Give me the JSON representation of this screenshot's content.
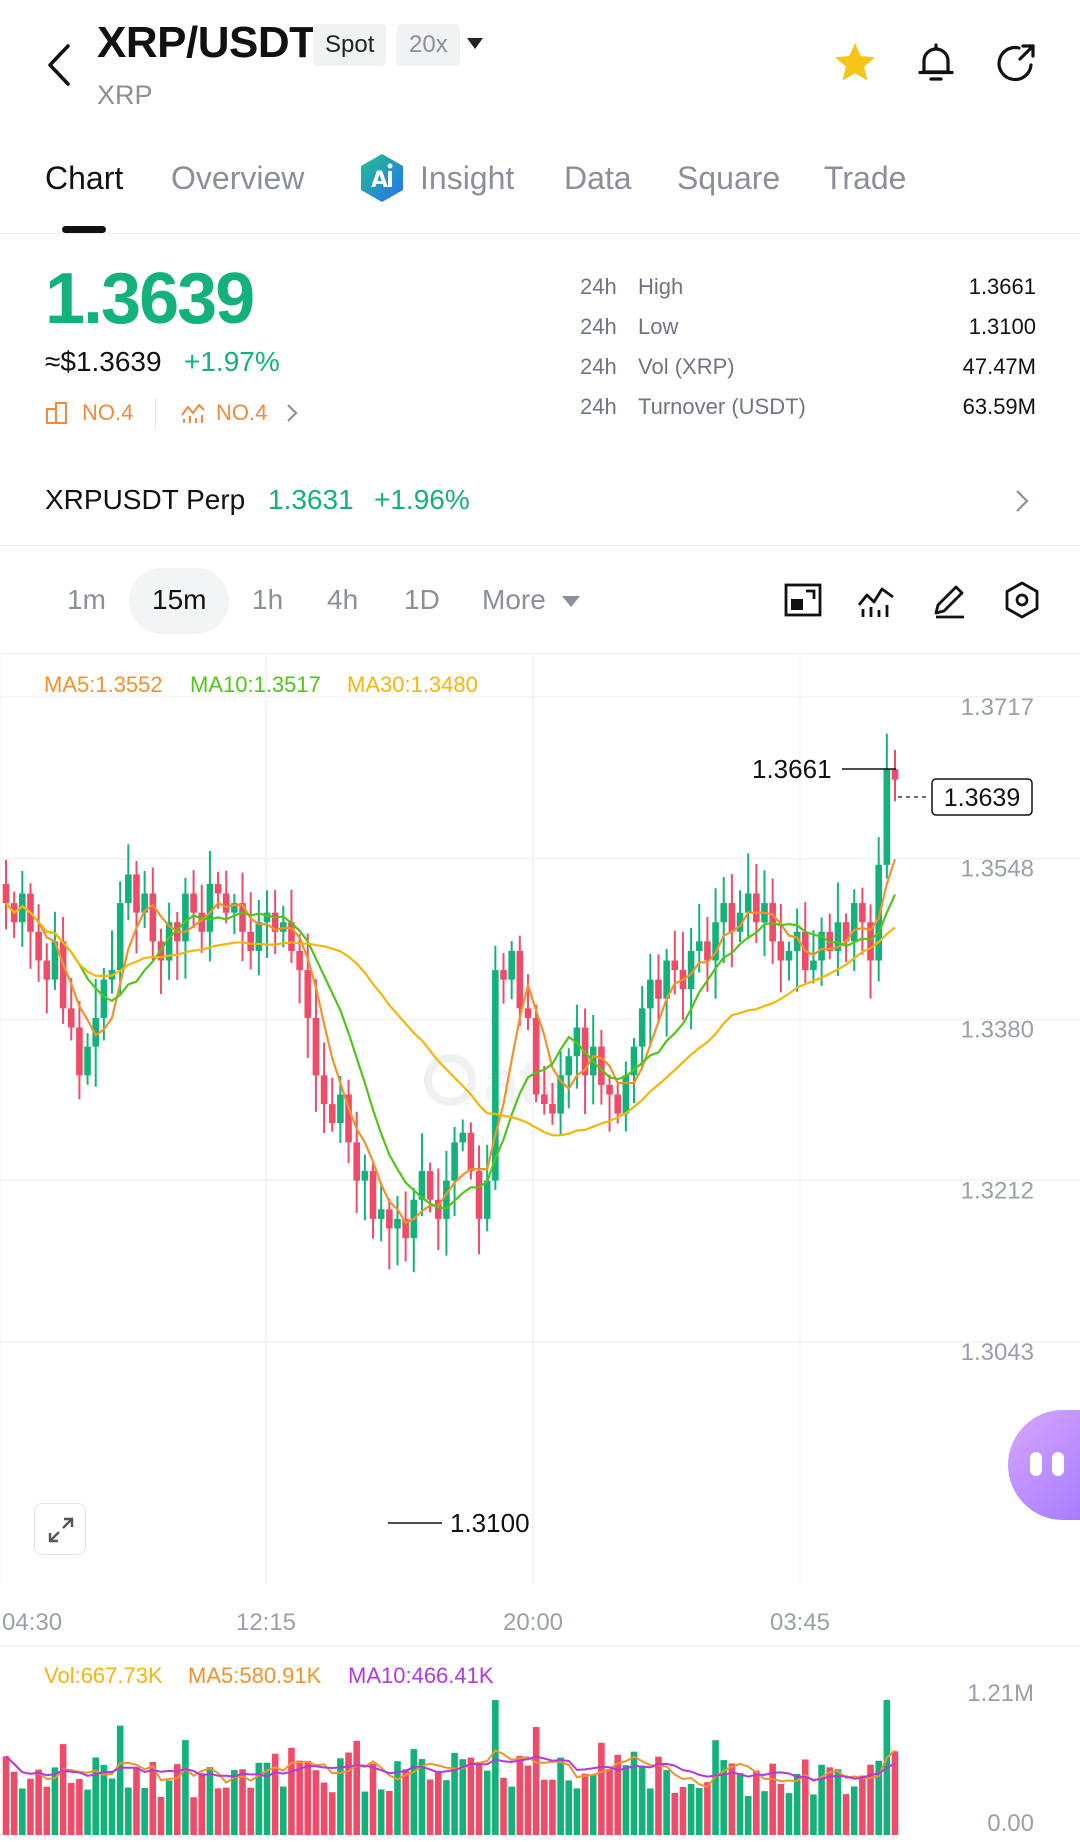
{
  "header": {
    "title": "XRP/USDT",
    "market_badge": "Spot",
    "leverage_badge": "20x",
    "subtitle": "XRP"
  },
  "tabs": [
    {
      "label": "Chart",
      "active": true
    },
    {
      "label": "Overview"
    },
    {
      "label": "Insight"
    },
    {
      "label": "Data"
    },
    {
      "label": "Square"
    },
    {
      "label": "Trade"
    }
  ],
  "price": {
    "last": "1.3639",
    "usd": "≈$1.3639",
    "change_pct": "+1.97%",
    "rank_1": "NO.4",
    "rank_2": "NO.4"
  },
  "stats": [
    {
      "period": "24h",
      "label": "High",
      "value": "1.3661"
    },
    {
      "period": "24h",
      "label": "Low",
      "value": "1.3100"
    },
    {
      "period": "24h",
      "label": "Vol (XRP)",
      "value": "47.47M"
    },
    {
      "period": "24h",
      "label": "Turnover (USDT)",
      "value": "63.59M"
    }
  ],
  "perp": {
    "name": "XRPUSDT Perp",
    "price": "1.3631",
    "change_pct": "+1.96%"
  },
  "intervals": [
    {
      "label": "1m"
    },
    {
      "label": "15m",
      "active": true
    },
    {
      "label": "1h"
    },
    {
      "label": "4h"
    },
    {
      "label": "1D"
    },
    {
      "label": "More"
    }
  ],
  "chart": {
    "ma5_label": "MA5:1.3552",
    "ma10_label": "MA10:1.3517",
    "ma30_label": "MA30:1.3480",
    "y_ticks": [
      "1.3717",
      "1.3548",
      "1.3380",
      "1.3212",
      "1.3043"
    ],
    "x_ticks": [
      "04:30",
      "12:15",
      "20:00",
      "03:45"
    ],
    "high_marker": "1.3661",
    "low_marker": "1.3100",
    "current_price_tag": "1.3639",
    "ylim": [
      1.3043,
      1.3717
    ]
  },
  "volume": {
    "vol_label": "Vol:667.73K",
    "ma5_label": "MA5:580.91K",
    "ma10_label": "MA10:466.41K",
    "y_ticks": [
      "1.21M",
      "0.00"
    ]
  },
  "colors": {
    "up": "#13b27a",
    "down": "#ef4c6a",
    "ma5": "#f0932b",
    "ma10": "#52c41a",
    "ma30": "#f5b50a",
    "vol_ma10": "#b23ad9",
    "accent_star": "#f5c518"
  },
  "chart_data": {
    "type": "candlestick",
    "interval": "15m",
    "ylim": [
      1.3043,
      1.3717
    ],
    "close_series": [
      1.351,
      1.349,
      1.352,
      1.348,
      1.345,
      1.343,
      1.347,
      1.34,
      1.338,
      1.333,
      1.336,
      1.339,
      1.343,
      1.344,
      1.351,
      1.354,
      1.35,
      1.352,
      1.347,
      1.345,
      1.349,
      1.347,
      1.352,
      1.35,
      1.348,
      1.353,
      1.352,
      1.35,
      1.351,
      1.348,
      1.346,
      1.349,
      1.35,
      1.348,
      1.349,
      1.346,
      1.344,
      1.339,
      1.333,
      1.33,
      1.328,
      1.331,
      1.326,
      1.322,
      1.323,
      1.318,
      1.319,
      1.317,
      1.318,
      1.316,
      1.32,
      1.323,
      1.32,
      1.318,
      1.322,
      1.326,
      1.327,
      1.323,
      1.318,
      1.322,
      1.344,
      1.343,
      1.346,
      1.34,
      1.339,
      1.331,
      1.33,
      1.329,
      1.333,
      1.335,
      1.338,
      1.333,
      1.336,
      1.332,
      1.331,
      1.329,
      1.333,
      1.336,
      1.34,
      1.343,
      1.341,
      1.345,
      1.344,
      1.342,
      1.346,
      1.347,
      1.345,
      1.349,
      1.351,
      1.348,
      1.35,
      1.352,
      1.349,
      1.351,
      1.347,
      1.345,
      1.346,
      1.348,
      1.344,
      1.345,
      1.348,
      1.346,
      1.349,
      1.347,
      1.351,
      1.349,
      1.345,
      1.355,
      1.365,
      1.3639
    ]
  }
}
